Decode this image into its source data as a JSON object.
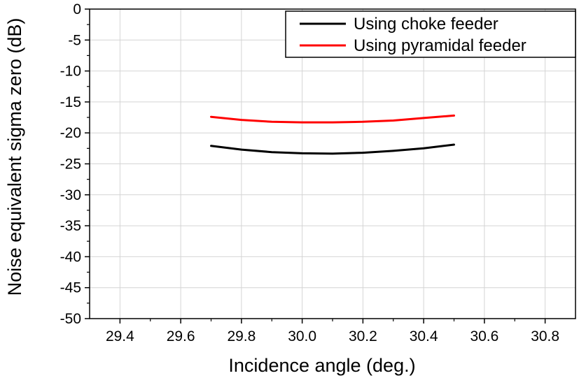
{
  "chart_data": {
    "type": "line",
    "xlabel": "Incidence angle (deg.)",
    "ylabel": "Noise equivalent sigma zero (dB)",
    "xlim": [
      29.3,
      30.9
    ],
    "ylim": [
      -50,
      0
    ],
    "xticks": [
      29.4,
      29.6,
      29.8,
      30.0,
      30.2,
      30.4,
      30.6,
      30.8
    ],
    "xtick_labels": [
      "29.4",
      "29.6",
      "29.8",
      "30.0",
      "30.2",
      "30.4",
      "30.6",
      "30.8"
    ],
    "yticks": [
      0,
      -5,
      -10,
      -15,
      -20,
      -25,
      -30,
      -35,
      -40,
      -45,
      -50
    ],
    "ytick_labels": [
      "0",
      "-5",
      "-10",
      "-15",
      "-20",
      "-25",
      "-30",
      "-35",
      "-40",
      "-45",
      "-50"
    ],
    "grid": true,
    "legend_position": "top-right",
    "series": [
      {
        "name": "Using choke feeder",
        "color": "#000000",
        "x": [
          29.7,
          29.8,
          29.9,
          30.0,
          30.1,
          30.2,
          30.3,
          30.4,
          30.5
        ],
        "y": [
          -22.1,
          -22.7,
          -23.1,
          -23.3,
          -23.35,
          -23.2,
          -22.9,
          -22.5,
          -21.9
        ]
      },
      {
        "name": "Using pyramidal feeder",
        "color": "#ff0000",
        "x": [
          29.7,
          29.8,
          29.9,
          30.0,
          30.1,
          30.2,
          30.3,
          30.4,
          30.5
        ],
        "y": [
          -17.4,
          -17.9,
          -18.2,
          -18.3,
          -18.3,
          -18.2,
          -18.0,
          -17.6,
          -17.2
        ]
      }
    ]
  }
}
